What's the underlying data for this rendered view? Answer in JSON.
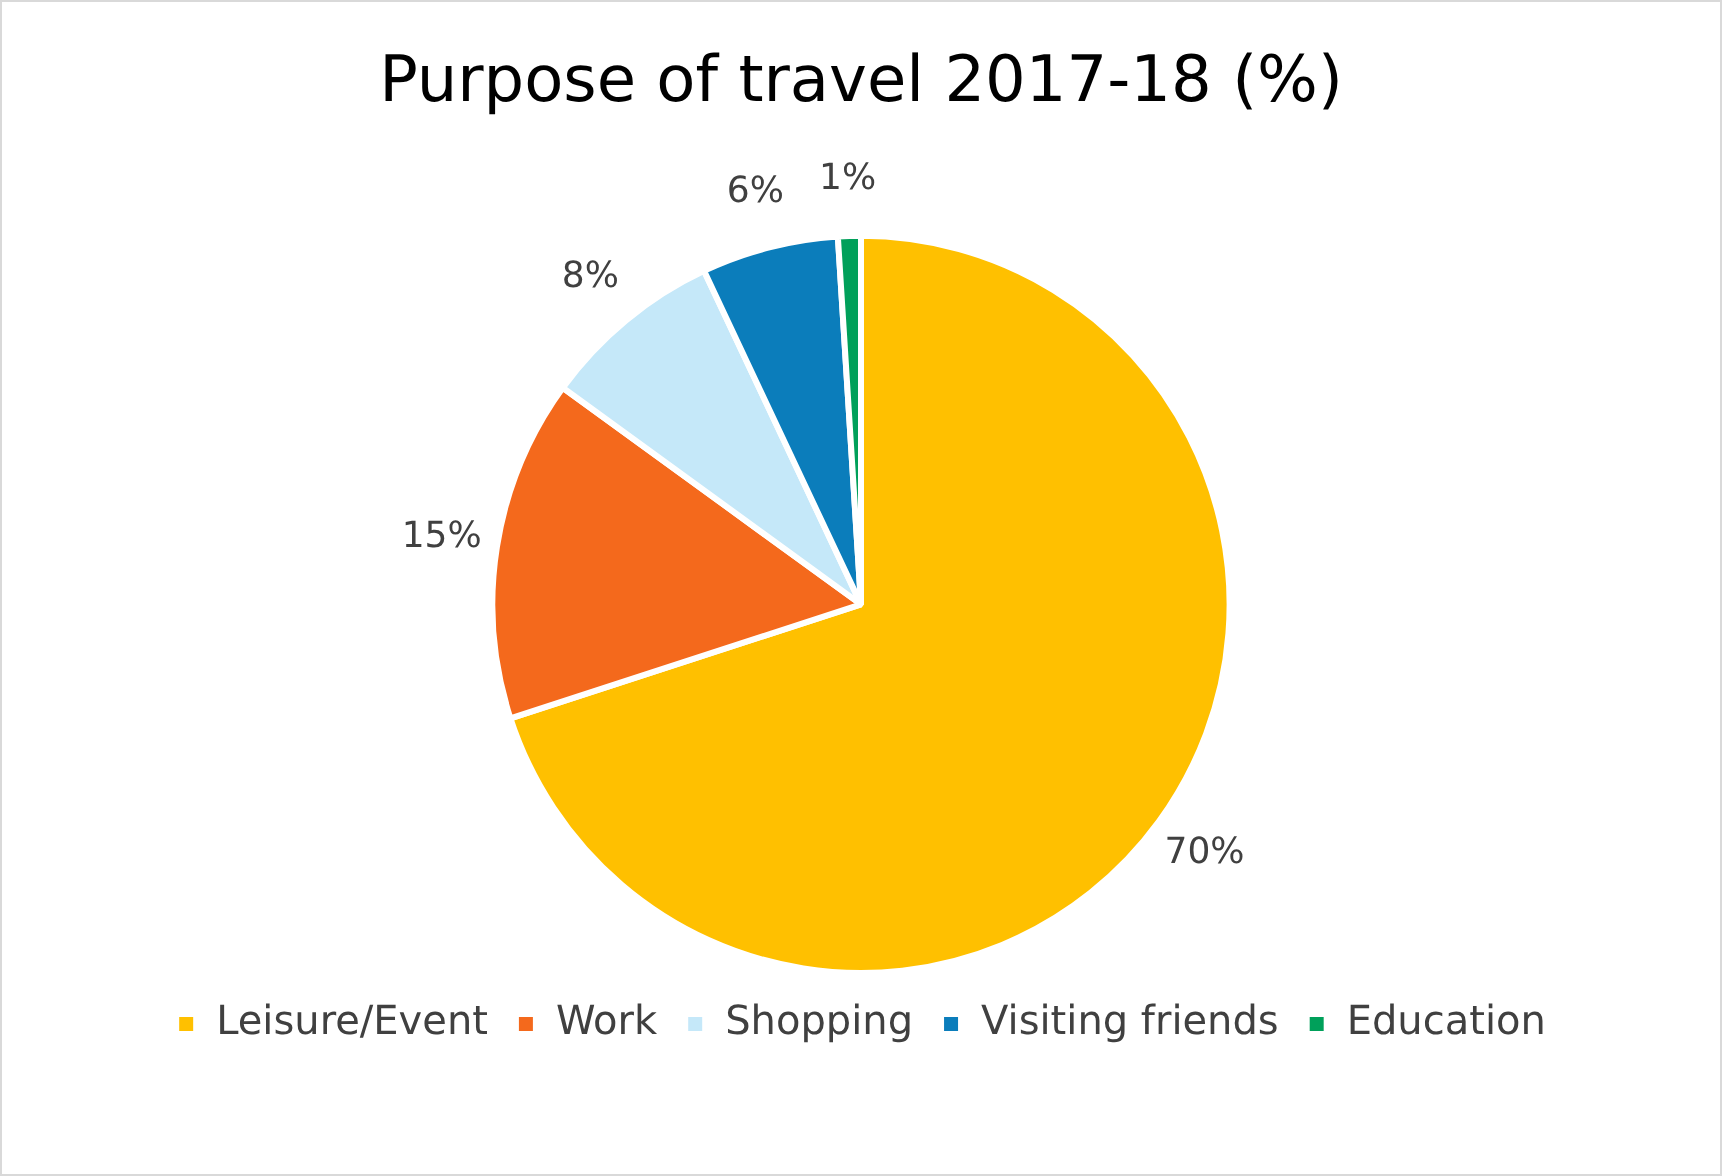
{
  "chart_data": {
    "type": "pie",
    "title": "Purpose of travel 2017-18 (%)",
    "categories": [
      "Leisure/Event",
      "Work",
      "Shopping",
      "Visiting friends",
      "Education"
    ],
    "values": [
      70,
      15,
      8,
      6,
      1
    ],
    "colors": [
      "#ffc000",
      "#f4691c",
      "#c5e8f9",
      "#0b7dbb",
      "#00a05a"
    ],
    "value_labels": [
      "70%",
      "15%",
      "8%",
      "6%",
      "1%"
    ],
    "legend": "bottom"
  }
}
